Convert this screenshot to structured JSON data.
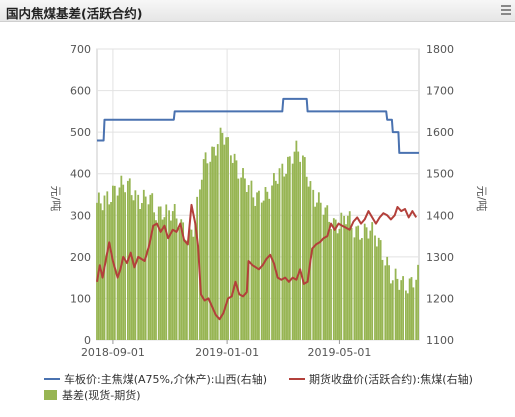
{
  "header": {
    "title": "国内焦煤基差(活跃合约)"
  },
  "chart_data": {
    "type": "bar+line",
    "title": "国内焦煤基差(活跃合约)",
    "ylabel_left": "元/吨",
    "ylabel_right": "元/吨",
    "ylim_left": [
      0,
      700
    ],
    "ylim_right": [
      1100,
      1800
    ],
    "yticks_left": [
      "0",
      "100",
      "200",
      "300",
      "400",
      "500",
      "600",
      "700"
    ],
    "yticks_right": [
      "1100",
      "1200",
      "1300",
      "1400",
      "1500",
      "1600",
      "1700",
      "1800"
    ],
    "xlim": [
      "2018-08-15",
      "2019-07-25"
    ],
    "xticks": [
      "2018-09-01",
      "2019-01-01",
      "2019-05-01"
    ],
    "grid": true,
    "legend_position": "bottom",
    "colors": {
      "spot": "#4a72b0",
      "futures": "#b3403b",
      "basis": "#97b553"
    },
    "series": [
      {
        "name": "车板价:主焦煤(A75%,介休产):山西(右轴)",
        "type": "line",
        "axis": "right",
        "points": [
          [
            "2018-08-15",
            1580
          ],
          [
            "2018-08-22",
            1580
          ],
          [
            "2018-08-23",
            1630
          ],
          [
            "2018-11-05",
            1630
          ],
          [
            "2018-11-06",
            1650
          ],
          [
            "2019-03-01",
            1650
          ],
          [
            "2019-03-02",
            1680
          ],
          [
            "2019-03-27",
            1680
          ],
          [
            "2019-03-28",
            1650
          ],
          [
            "2019-06-20",
            1650
          ],
          [
            "2019-06-21",
            1630
          ],
          [
            "2019-06-26",
            1630
          ],
          [
            "2019-06-27",
            1600
          ],
          [
            "2019-07-03",
            1600
          ],
          [
            "2019-07-04",
            1550
          ],
          [
            "2019-07-25",
            1550
          ]
        ]
      },
      {
        "name": "期货收盘价(活跃合约):焦煤(右轴)",
        "type": "line",
        "axis": "right",
        "points": [
          [
            "2018-08-15",
            1240
          ],
          [
            "2018-08-18",
            1280
          ],
          [
            "2018-08-21",
            1250
          ],
          [
            "2018-08-25",
            1300
          ],
          [
            "2018-08-28",
            1335
          ],
          [
            "2018-09-01",
            1290
          ],
          [
            "2018-09-06",
            1250
          ],
          [
            "2018-09-09",
            1270
          ],
          [
            "2018-09-12",
            1300
          ],
          [
            "2018-09-16",
            1285
          ],
          [
            "2018-09-20",
            1310
          ],
          [
            "2018-09-24",
            1275
          ],
          [
            "2018-09-28",
            1300
          ],
          [
            "2018-10-05",
            1290
          ],
          [
            "2018-10-10",
            1330
          ],
          [
            "2018-10-14",
            1375
          ],
          [
            "2018-10-18",
            1380
          ],
          [
            "2018-10-22",
            1360
          ],
          [
            "2018-10-26",
            1375
          ],
          [
            "2018-10-30",
            1345
          ],
          [
            "2018-11-04",
            1365
          ],
          [
            "2018-11-08",
            1360
          ],
          [
            "2018-11-12",
            1380
          ],
          [
            "2018-11-16",
            1340
          ],
          [
            "2018-11-20",
            1330
          ],
          [
            "2018-11-24",
            1425
          ],
          [
            "2018-11-28",
            1380
          ],
          [
            "2018-12-01",
            1325
          ],
          [
            "2018-12-04",
            1210
          ],
          [
            "2018-12-08",
            1195
          ],
          [
            "2018-12-12",
            1200
          ],
          [
            "2018-12-16",
            1180
          ],
          [
            "2018-12-20",
            1160
          ],
          [
            "2018-12-24",
            1150
          ],
          [
            "2018-12-28",
            1165
          ],
          [
            "2019-01-02",
            1200
          ],
          [
            "2019-01-06",
            1205
          ],
          [
            "2019-01-10",
            1240
          ],
          [
            "2019-01-14",
            1210
          ],
          [
            "2019-01-18",
            1205
          ],
          [
            "2019-01-22",
            1215
          ],
          [
            "2019-01-24",
            1290
          ],
          [
            "2019-01-28",
            1280
          ],
          [
            "2019-02-04",
            1270
          ],
          [
            "2019-02-08",
            1280
          ],
          [
            "2019-02-12",
            1295
          ],
          [
            "2019-02-16",
            1305
          ],
          [
            "2019-02-20",
            1285
          ],
          [
            "2019-02-24",
            1250
          ],
          [
            "2019-02-28",
            1245
          ],
          [
            "2019-03-04",
            1250
          ],
          [
            "2019-03-08",
            1240
          ],
          [
            "2019-03-12",
            1250
          ],
          [
            "2019-03-16",
            1245
          ],
          [
            "2019-03-20",
            1270
          ],
          [
            "2019-03-24",
            1235
          ],
          [
            "2019-03-28",
            1240
          ],
          [
            "2019-03-31",
            1290
          ],
          [
            "2019-04-02",
            1320
          ],
          [
            "2019-04-06",
            1330
          ],
          [
            "2019-04-10",
            1335
          ],
          [
            "2019-04-14",
            1345
          ],
          [
            "2019-04-18",
            1350
          ],
          [
            "2019-04-22",
            1380
          ],
          [
            "2019-04-26",
            1365
          ],
          [
            "2019-04-30",
            1380
          ],
          [
            "2019-05-04",
            1375
          ],
          [
            "2019-05-08",
            1370
          ],
          [
            "2019-05-12",
            1365
          ],
          [
            "2019-05-16",
            1385
          ],
          [
            "2019-05-20",
            1395
          ],
          [
            "2019-05-24",
            1380
          ],
          [
            "2019-05-28",
            1390
          ],
          [
            "2019-06-01",
            1410
          ],
          [
            "2019-06-05",
            1395
          ],
          [
            "2019-06-09",
            1380
          ],
          [
            "2019-06-13",
            1395
          ],
          [
            "2019-06-17",
            1405
          ],
          [
            "2019-06-21",
            1400
          ],
          [
            "2019-06-25",
            1390
          ],
          [
            "2019-06-29",
            1400
          ],
          [
            "2019-07-02",
            1420
          ],
          [
            "2019-07-06",
            1410
          ],
          [
            "2019-07-10",
            1415
          ],
          [
            "2019-07-14",
            1395
          ],
          [
            "2019-07-18",
            1410
          ],
          [
            "2019-07-22",
            1395
          ]
        ]
      },
      {
        "name": "基差(现货-期货)",
        "type": "bar",
        "axis": "left",
        "points": [
          [
            "2018-08-15",
            330
          ],
          [
            "2018-08-22",
            320
          ],
          [
            "2018-08-29",
            345
          ],
          [
            "2018-09-05",
            380
          ],
          [
            "2018-09-12",
            370
          ],
          [
            "2018-09-19",
            360
          ],
          [
            "2018-09-26",
            350
          ],
          [
            "2018-10-03",
            345
          ],
          [
            "2018-10-10",
            340
          ],
          [
            "2018-10-17",
            300
          ],
          [
            "2018-10-24",
            320
          ],
          [
            "2018-11-01",
            310
          ],
          [
            "2018-11-08",
            290
          ],
          [
            "2018-11-15",
            270
          ],
          [
            "2018-11-22",
            260
          ],
          [
            "2018-11-29",
            280
          ],
          [
            "2018-12-06",
            410
          ],
          [
            "2018-12-13",
            450
          ],
          [
            "2018-12-20",
            470
          ],
          [
            "2018-12-27",
            490
          ],
          [
            "2019-01-03",
            460
          ],
          [
            "2019-01-10",
            440
          ],
          [
            "2019-01-17",
            400
          ],
          [
            "2019-01-24",
            360
          ],
          [
            "2019-01-31",
            340
          ],
          [
            "2019-02-07",
            360
          ],
          [
            "2019-02-14",
            350
          ],
          [
            "2019-02-21",
            370
          ],
          [
            "2019-02-28",
            410
          ],
          [
            "2019-03-07",
            430
          ],
          [
            "2019-03-14",
            450
          ],
          [
            "2019-03-21",
            440
          ],
          [
            "2019-03-28",
            410
          ],
          [
            "2019-04-04",
            350
          ],
          [
            "2019-04-11",
            320
          ],
          [
            "2019-04-18",
            300
          ],
          [
            "2019-04-25",
            290
          ],
          [
            "2019-05-02",
            280
          ],
          [
            "2019-05-09",
            290
          ],
          [
            "2019-05-16",
            270
          ],
          [
            "2019-05-23",
            270
          ],
          [
            "2019-05-30",
            260
          ],
          [
            "2019-06-06",
            250
          ],
          [
            "2019-06-13",
            240
          ],
          [
            "2019-06-20",
            200
          ],
          [
            "2019-06-27",
            140
          ],
          [
            "2019-07-04",
            135
          ],
          [
            "2019-07-11",
            140
          ],
          [
            "2019-07-18",
            145
          ],
          [
            "2019-07-25",
            150
          ]
        ]
      }
    ]
  },
  "legend": {
    "spot": "车板价:主焦煤(A75%,介休产):山西(右轴)",
    "futures": "期货收盘价(活跃合约):焦煤(右轴)",
    "basis": "基差(现货-期货)"
  }
}
